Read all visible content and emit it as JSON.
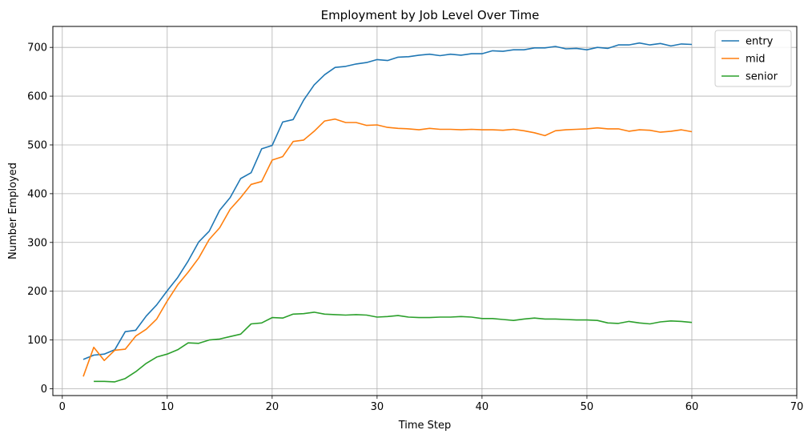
{
  "chart_data": {
    "type": "line",
    "title": "Employment by Job Level Over Time",
    "xlabel": "Time Step",
    "ylabel": "Number Employed",
    "xlim": [
      -0.9,
      70
    ],
    "ylim": [
      -14,
      743
    ],
    "xticks": [
      0,
      10,
      20,
      30,
      40,
      50,
      60,
      70
    ],
    "yticks": [
      0,
      100,
      200,
      300,
      400,
      500,
      600,
      700
    ],
    "grid": true,
    "legend_position": "top-right",
    "series": [
      {
        "name": "entry",
        "color": "#1f77b4",
        "x": [
          2,
          3,
          4,
          5,
          6,
          7,
          8,
          9,
          10,
          11,
          12,
          13,
          14,
          15,
          16,
          17,
          18,
          19,
          20,
          21,
          22,
          23,
          24,
          25,
          26,
          27,
          28,
          29,
          30,
          31,
          32,
          33,
          34,
          35,
          36,
          37,
          38,
          39,
          40,
          41,
          42,
          43,
          44,
          45,
          46,
          47,
          48,
          49,
          50,
          51,
          52,
          53,
          54,
          55,
          56,
          57,
          58,
          59,
          60
        ],
        "y": [
          60,
          69,
          71,
          80,
          117,
          120,
          149,
          172,
          201,
          228,
          262,
          301,
          323,
          366,
          392,
          431,
          443,
          492,
          499,
          547,
          552,
          592,
          623,
          644,
          659,
          661,
          666,
          669,
          675,
          673,
          680,
          681,
          684,
          686,
          683,
          686,
          684,
          687,
          687,
          693,
          692,
          695,
          695,
          699,
          699,
          702,
          697,
          698,
          695,
          700,
          698,
          705,
          705,
          709,
          705,
          708,
          703,
          707,
          706
        ]
      },
      {
        "name": "mid",
        "color": "#ff7f0e",
        "x": [
          2,
          3,
          4,
          5,
          6,
          7,
          8,
          9,
          10,
          11,
          12,
          13,
          14,
          15,
          16,
          17,
          18,
          19,
          20,
          21,
          22,
          23,
          24,
          25,
          26,
          27,
          28,
          29,
          30,
          31,
          32,
          33,
          34,
          35,
          36,
          37,
          38,
          39,
          40,
          41,
          42,
          43,
          44,
          45,
          46,
          47,
          48,
          49,
          50,
          51,
          52,
          53,
          54,
          55,
          56,
          57,
          58,
          59,
          60
        ],
        "y": [
          25,
          85,
          58,
          79,
          81,
          108,
          122,
          143,
          180,
          213,
          239,
          268,
          306,
          330,
          368,
          392,
          419,
          425,
          469,
          476,
          507,
          510,
          528,
          549,
          553,
          546,
          546,
          540,
          541,
          536,
          534,
          533,
          531,
          534,
          532,
          532,
          531,
          532,
          531,
          531,
          530,
          532,
          529,
          525,
          519,
          529,
          531,
          532,
          533,
          535,
          533,
          533,
          528,
          531,
          530,
          526,
          528,
          531,
          527
        ]
      },
      {
        "name": "senior",
        "color": "#2ca02c",
        "x": [
          3,
          4,
          5,
          6,
          7,
          8,
          9,
          10,
          11,
          12,
          13,
          14,
          15,
          16,
          17,
          18,
          19,
          20,
          21,
          22,
          23,
          24,
          25,
          26,
          27,
          28,
          29,
          30,
          31,
          32,
          33,
          34,
          35,
          36,
          37,
          38,
          39,
          40,
          41,
          42,
          43,
          44,
          45,
          46,
          47,
          48,
          49,
          50,
          51,
          52,
          53,
          54,
          55,
          56,
          57,
          58,
          59,
          60
        ],
        "y": [
          15,
          15,
          14,
          21,
          35,
          52,
          65,
          71,
          80,
          94,
          93,
          100,
          102,
          107,
          112,
          133,
          135,
          146,
          145,
          153,
          154,
          157,
          153,
          152,
          151,
          152,
          151,
          147,
          148,
          150,
          147,
          146,
          146,
          147,
          147,
          148,
          147,
          144,
          144,
          142,
          140,
          143,
          145,
          143,
          143,
          142,
          141,
          141,
          140,
          135,
          134,
          138,
          135,
          133,
          137,
          139,
          138,
          136
        ]
      }
    ]
  }
}
